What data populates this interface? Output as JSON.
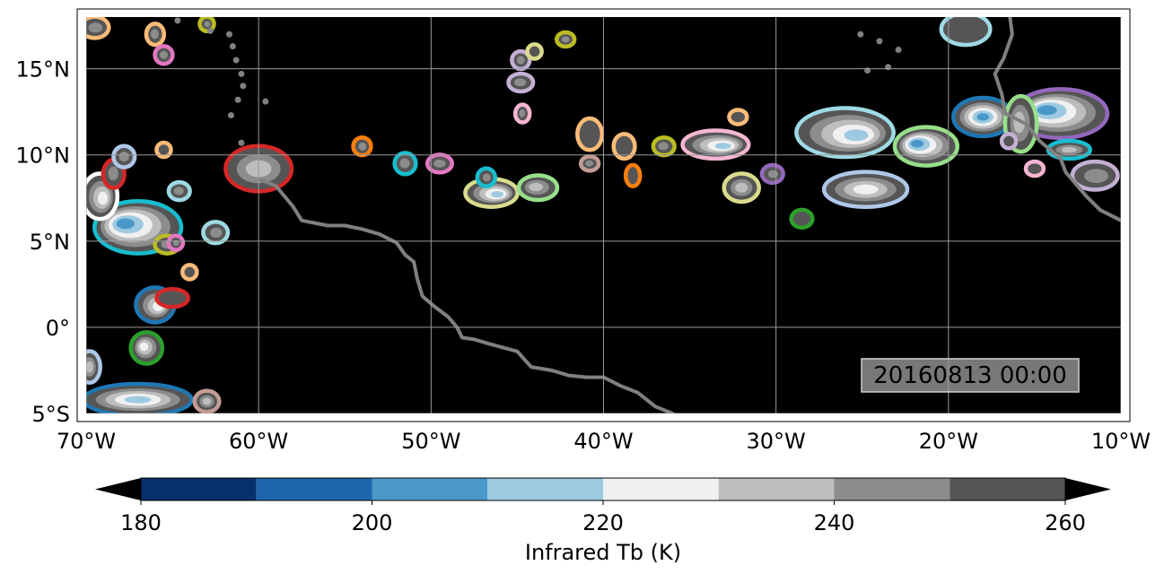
{
  "map": {
    "timestamp": "20160813 00:00",
    "lon_range": [
      -70,
      -10
    ],
    "lat_range": [
      -5,
      18
    ],
    "lon_ticks": [
      {
        "value": -70,
        "label": "70°W"
      },
      {
        "value": -60,
        "label": "60°W"
      },
      {
        "value": -50,
        "label": "50°W"
      },
      {
        "value": -40,
        "label": "40°W"
      },
      {
        "value": -30,
        "label": "30°W"
      },
      {
        "value": -20,
        "label": "20°W"
      },
      {
        "value": -10,
        "label": "10°W"
      }
    ],
    "lat_ticks": [
      {
        "value": 15,
        "label": "15°N"
      },
      {
        "value": 10,
        "label": "10°N"
      },
      {
        "value": 5,
        "label": "5°N"
      },
      {
        "value": 0,
        "label": "0°"
      },
      {
        "value": -5,
        "label": "5°S"
      }
    ],
    "gridlines": true,
    "background_color": "#000000",
    "coastline_color": "#808080",
    "coastline": [
      [
        -60.0,
        8.6
      ],
      [
        -59.0,
        8.2
      ],
      [
        -58.0,
        7.0
      ],
      [
        -57.5,
        6.2
      ],
      [
        -56.0,
        5.9
      ],
      [
        -55.0,
        5.9
      ],
      [
        -54.0,
        5.7
      ],
      [
        -53.0,
        5.4
      ],
      [
        -52.0,
        4.9
      ],
      [
        -51.5,
        4.2
      ],
      [
        -51.0,
        3.8
      ],
      [
        -50.8,
        2.8
      ],
      [
        -50.5,
        1.8
      ],
      [
        -49.8,
        1.2
      ],
      [
        -49.0,
        0.6
      ],
      [
        -48.5,
        0.0
      ],
      [
        -48.2,
        -0.6
      ],
      [
        -47.5,
        -0.7
      ],
      [
        -46.5,
        -1.0
      ],
      [
        -45.0,
        -1.4
      ],
      [
        -44.2,
        -2.3
      ],
      [
        -43.0,
        -2.5
      ],
      [
        -42.0,
        -2.8
      ],
      [
        -41.0,
        -2.9
      ],
      [
        -40.0,
        -2.9
      ],
      [
        -39.0,
        -3.4
      ],
      [
        -38.0,
        -3.8
      ],
      [
        -37.0,
        -4.6
      ],
      [
        -36.0,
        -5.0
      ],
      [
        -35.5,
        -5.4
      ]
    ],
    "islands": [
      [
        -65.5,
        18.3
      ],
      [
        -64.7,
        17.8
      ],
      [
        -62.8,
        17.2
      ],
      [
        -61.7,
        17.0
      ],
      [
        -61.5,
        16.3
      ],
      [
        -61.3,
        15.5
      ],
      [
        -61.0,
        14.7
      ],
      [
        -60.9,
        14.0
      ],
      [
        -61.2,
        13.2
      ],
      [
        -59.6,
        13.1
      ],
      [
        -61.6,
        12.3
      ],
      [
        -61.0,
        10.7
      ],
      [
        -24.0,
        16.6
      ],
      [
        -23.5,
        15.1
      ],
      [
        -24.7,
        14.9
      ],
      [
        -25.1,
        17.0
      ],
      [
        -22.9,
        16.1
      ]
    ],
    "africa_coast": [
      [
        -16.5,
        18.5
      ],
      [
        -16.3,
        17.0
      ],
      [
        -16.8,
        15.6
      ],
      [
        -17.3,
        14.7
      ],
      [
        -16.9,
        13.5
      ],
      [
        -16.7,
        12.4
      ],
      [
        -15.5,
        11.8
      ],
      [
        -14.7,
        10.8
      ],
      [
        -13.5,
        9.8
      ],
      [
        -13.2,
        9.0
      ],
      [
        -12.0,
        7.6
      ],
      [
        -11.2,
        6.8
      ],
      [
        -10.0,
        6.2
      ]
    ],
    "storms": [
      {
        "lon": -13.5,
        "lat": 12.4,
        "rx": 2.6,
        "ry": 1.3,
        "min_tb": 200,
        "outline": "#9467bd"
      },
      {
        "lon": -18.0,
        "lat": 12.2,
        "rx": 1.6,
        "ry": 1.0,
        "min_tb": 205,
        "outline": "#1f77b4"
      },
      {
        "lon": -26.0,
        "lat": 11.3,
        "rx": 2.7,
        "ry": 1.3,
        "min_tb": 210,
        "outline": "#9edae5"
      },
      {
        "lon": -21.3,
        "lat": 10.5,
        "rx": 1.7,
        "ry": 1.0,
        "min_tb": 205,
        "outline": "#98df8a"
      },
      {
        "lon": -24.8,
        "lat": 8.0,
        "rx": 2.3,
        "ry": 0.9,
        "min_tb": 225,
        "outline": "#aec7e8"
      },
      {
        "lon": -33.5,
        "lat": 10.6,
        "rx": 1.8,
        "ry": 0.7,
        "min_tb": 210,
        "outline": "#f7b6d2"
      },
      {
        "lon": -15.8,
        "lat": 11.8,
        "rx": 0.8,
        "ry": 1.5,
        "min_tb": 235,
        "outline": "#98df8a"
      },
      {
        "lon": -13.0,
        "lat": 10.3,
        "rx": 1.1,
        "ry": 0.4,
        "min_tb": 235,
        "outline": "#17becf"
      },
      {
        "lon": -11.5,
        "lat": 8.8,
        "rx": 1.2,
        "ry": 0.7,
        "min_tb": 240,
        "outline": "#c5b0d5"
      },
      {
        "lon": -67.0,
        "lat": 5.8,
        "rx": 2.4,
        "ry": 1.4,
        "min_tb": 205,
        "outline": "#17becf"
      },
      {
        "lon": -60.0,
        "lat": 9.2,
        "rx": 1.8,
        "ry": 1.2,
        "min_tb": 235,
        "outline": "#d62728"
      },
      {
        "lon": -46.5,
        "lat": 7.8,
        "rx": 1.4,
        "ry": 0.7,
        "min_tb": 215,
        "outline": "#dbdb8d"
      },
      {
        "lon": -43.8,
        "lat": 8.1,
        "rx": 1.0,
        "ry": 0.6,
        "min_tb": 235,
        "outline": "#98df8a"
      },
      {
        "lon": -32.0,
        "lat": 8.1,
        "rx": 0.9,
        "ry": 0.7,
        "min_tb": 235,
        "outline": "#dbdb8d"
      },
      {
        "lon": -66.0,
        "lat": 1.3,
        "rx": 1.0,
        "ry": 0.9,
        "min_tb": 225,
        "outline": "#1f77b4"
      },
      {
        "lon": -66.5,
        "lat": -1.2,
        "rx": 0.8,
        "ry": 0.8,
        "min_tb": 225,
        "outline": "#2ca02c"
      },
      {
        "lon": -67.0,
        "lat": -4.2,
        "rx": 3.0,
        "ry": 0.8,
        "min_tb": 215,
        "outline": "#1f77b4"
      },
      {
        "lon": -69.2,
        "lat": 7.6,
        "rx": 0.9,
        "ry": 1.2,
        "min_tb": 225,
        "outline": "#ffffff"
      },
      {
        "lon": -68.4,
        "lat": 8.9,
        "rx": 0.5,
        "ry": 0.7,
        "min_tb": 240,
        "outline": "#d62728"
      },
      {
        "lon": -67.8,
        "lat": 9.9,
        "rx": 0.5,
        "ry": 0.5,
        "min_tb": 240,
        "outline": "#aec7e8"
      },
      {
        "lon": -69.5,
        "lat": 17.4,
        "rx": 0.7,
        "ry": 0.5,
        "min_tb": 240,
        "outline": "#ffbb78"
      },
      {
        "lon": -66.0,
        "lat": 17.0,
        "rx": 0.4,
        "ry": 0.5,
        "min_tb": 240,
        "outline": "#ffbb78"
      },
      {
        "lon": -65.5,
        "lat": 15.8,
        "rx": 0.4,
        "ry": 0.4,
        "min_tb": 240,
        "outline": "#e377c2"
      },
      {
        "lon": -63.0,
        "lat": 17.6,
        "rx": 0.3,
        "ry": 0.3,
        "min_tb": 245,
        "outline": "#bcbd22"
      },
      {
        "lon": -64.6,
        "lat": 7.9,
        "rx": 0.5,
        "ry": 0.4,
        "min_tb": 245,
        "outline": "#9edae5"
      },
      {
        "lon": -65.3,
        "lat": 4.8,
        "rx": 0.6,
        "ry": 0.4,
        "min_tb": 240,
        "outline": "#bcbd22"
      },
      {
        "lon": -64.8,
        "lat": 4.9,
        "rx": 0.3,
        "ry": 0.3,
        "min_tb": 245,
        "outline": "#e377c2"
      },
      {
        "lon": -64.0,
        "lat": 3.2,
        "rx": 0.3,
        "ry": 0.3,
        "min_tb": 250,
        "outline": "#ffbb78"
      },
      {
        "lon": -65.0,
        "lat": 1.7,
        "rx": 0.8,
        "ry": 0.4,
        "min_tb": 250,
        "outline": "#d62728"
      },
      {
        "lon": -62.5,
        "lat": 5.5,
        "rx": 0.6,
        "ry": 0.5,
        "min_tb": 240,
        "outline": "#9edae5"
      },
      {
        "lon": -65.5,
        "lat": 10.3,
        "rx": 0.3,
        "ry": 0.3,
        "min_tb": 250,
        "outline": "#ffbb78"
      },
      {
        "lon": -69.8,
        "lat": -2.3,
        "rx": 0.5,
        "ry": 0.8,
        "min_tb": 235,
        "outline": "#aec7e8"
      },
      {
        "lon": -54.0,
        "lat": 10.5,
        "rx": 0.4,
        "ry": 0.4,
        "min_tb": 245,
        "outline": "#ff7f0e"
      },
      {
        "lon": -51.5,
        "lat": 9.5,
        "rx": 0.5,
        "ry": 0.5,
        "min_tb": 240,
        "outline": "#17becf"
      },
      {
        "lon": -49.5,
        "lat": 9.5,
        "rx": 0.6,
        "ry": 0.4,
        "min_tb": 240,
        "outline": "#e377c2"
      },
      {
        "lon": -46.8,
        "lat": 8.7,
        "rx": 0.4,
        "ry": 0.4,
        "min_tb": 240,
        "outline": "#17becf"
      },
      {
        "lon": -44.8,
        "lat": 14.2,
        "rx": 0.6,
        "ry": 0.4,
        "min_tb": 240,
        "outline": "#c5b0d5"
      },
      {
        "lon": -44.8,
        "lat": 15.5,
        "rx": 0.4,
        "ry": 0.4,
        "min_tb": 245,
        "outline": "#c5b0d5"
      },
      {
        "lon": -44.0,
        "lat": 16.0,
        "rx": 0.3,
        "ry": 0.3,
        "min_tb": 250,
        "outline": "#dbdb8d"
      },
      {
        "lon": -44.7,
        "lat": 12.4,
        "rx": 0.3,
        "ry": 0.4,
        "min_tb": 245,
        "outline": "#f7b6d2"
      },
      {
        "lon": -42.2,
        "lat": 16.7,
        "rx": 0.4,
        "ry": 0.3,
        "min_tb": 245,
        "outline": "#bcbd22"
      },
      {
        "lon": -40.8,
        "lat": 11.2,
        "rx": 0.6,
        "ry": 0.8,
        "min_tb": 250,
        "outline": "#ffbb78"
      },
      {
        "lon": -40.8,
        "lat": 9.5,
        "rx": 0.4,
        "ry": 0.3,
        "min_tb": 245,
        "outline": "#c49c94"
      },
      {
        "lon": -38.8,
        "lat": 10.5,
        "rx": 0.5,
        "ry": 0.6,
        "min_tb": 250,
        "outline": "#ffbb78"
      },
      {
        "lon": -38.3,
        "lat": 8.8,
        "rx": 0.3,
        "ry": 0.5,
        "min_tb": 250,
        "outline": "#ff7f0e"
      },
      {
        "lon": -36.5,
        "lat": 10.5,
        "rx": 0.5,
        "ry": 0.4,
        "min_tb": 245,
        "outline": "#bcbd22"
      },
      {
        "lon": -32.2,
        "lat": 12.2,
        "rx": 0.4,
        "ry": 0.3,
        "min_tb": 250,
        "outline": "#ffbb78"
      },
      {
        "lon": -30.2,
        "lat": 8.9,
        "rx": 0.5,
        "ry": 0.4,
        "min_tb": 240,
        "outline": "#9467bd"
      },
      {
        "lon": -28.5,
        "lat": 6.3,
        "rx": 0.5,
        "ry": 0.4,
        "min_tb": 250,
        "outline": "#2ca02c"
      },
      {
        "lon": -19.0,
        "lat": 17.3,
        "rx": 1.3,
        "ry": 0.8,
        "min_tb": 250,
        "outline": "#9edae5"
      },
      {
        "lon": -16.5,
        "lat": 10.8,
        "rx": 0.3,
        "ry": 0.3,
        "min_tb": 250,
        "outline": "#c5b0d5"
      },
      {
        "lon": -15.0,
        "lat": 9.2,
        "rx": 0.4,
        "ry": 0.3,
        "min_tb": 250,
        "outline": "#f7b6d2"
      },
      {
        "lon": -63.0,
        "lat": -4.3,
        "rx": 0.6,
        "ry": 0.5,
        "min_tb": 235,
        "outline": "#c49c94"
      }
    ]
  },
  "colorbar": {
    "label": "Infrared Tb (K)",
    "min": 180,
    "max": 260,
    "levels": [
      180,
      190,
      200,
      210,
      220,
      230,
      240,
      250,
      260
    ],
    "colors": [
      "#08306b",
      "#1f65ad",
      "#4a98c9",
      "#9ecae1",
      "#f0f0f0",
      "#bdbdbd",
      "#8c8c8c",
      "#555555"
    ],
    "under_color": "#000000",
    "over_color": "#000000",
    "ticks": [
      {
        "value": 180,
        "label": "180"
      },
      {
        "value": 200,
        "label": "200"
      },
      {
        "value": 220,
        "label": "220"
      },
      {
        "value": 240,
        "label": "240"
      },
      {
        "value": 260,
        "label": "260"
      }
    ]
  }
}
